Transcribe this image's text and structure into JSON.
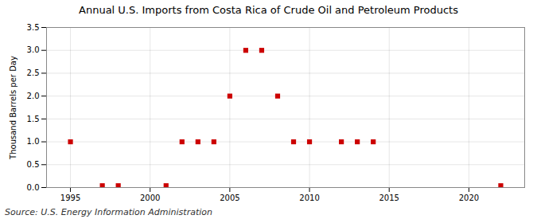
{
  "chart_data": {
    "type": "scatter",
    "title": "Annual U.S. Imports from Costa Rica of Crude Oil and Petroleum Products",
    "ylabel": "Thousand Barrels per Day",
    "annotations": [
      "Source: U.S. Energy Information Administration"
    ],
    "x": [
      1995,
      1997,
      1998,
      2001,
      2002,
      2003,
      2004,
      2005,
      2006,
      2007,
      2008,
      2009,
      2010,
      2012,
      2013,
      2014,
      2022
    ],
    "values": [
      1.0,
      0.04,
      0.04,
      0.04,
      1.0,
      1.0,
      1.0,
      2.0,
      3.0,
      3.0,
      2.0,
      1.0,
      1.0,
      1.0,
      1.0,
      1.0,
      0.04
    ],
    "color": "#cc0000",
    "marker": "square",
    "xlim": [
      1993.5,
      2023.5
    ],
    "xticks": [
      1995,
      2000,
      2005,
      2010,
      2015,
      2020
    ],
    "ylim": [
      0.0,
      3.5
    ],
    "yticks": [
      {
        "value": 0.0,
        "label": "0.0"
      },
      {
        "value": 0.5,
        "label": "0.5"
      },
      {
        "value": 1.0,
        "label": "1.0"
      },
      {
        "value": 1.5,
        "label": "1.5"
      },
      {
        "value": 2.0,
        "label": "2.0"
      },
      {
        "value": 2.5,
        "label": "2.5"
      },
      {
        "value": 3.0,
        "label": "3.0"
      },
      {
        "value": 3.5,
        "label": "3.5"
      }
    ],
    "grid": true
  }
}
